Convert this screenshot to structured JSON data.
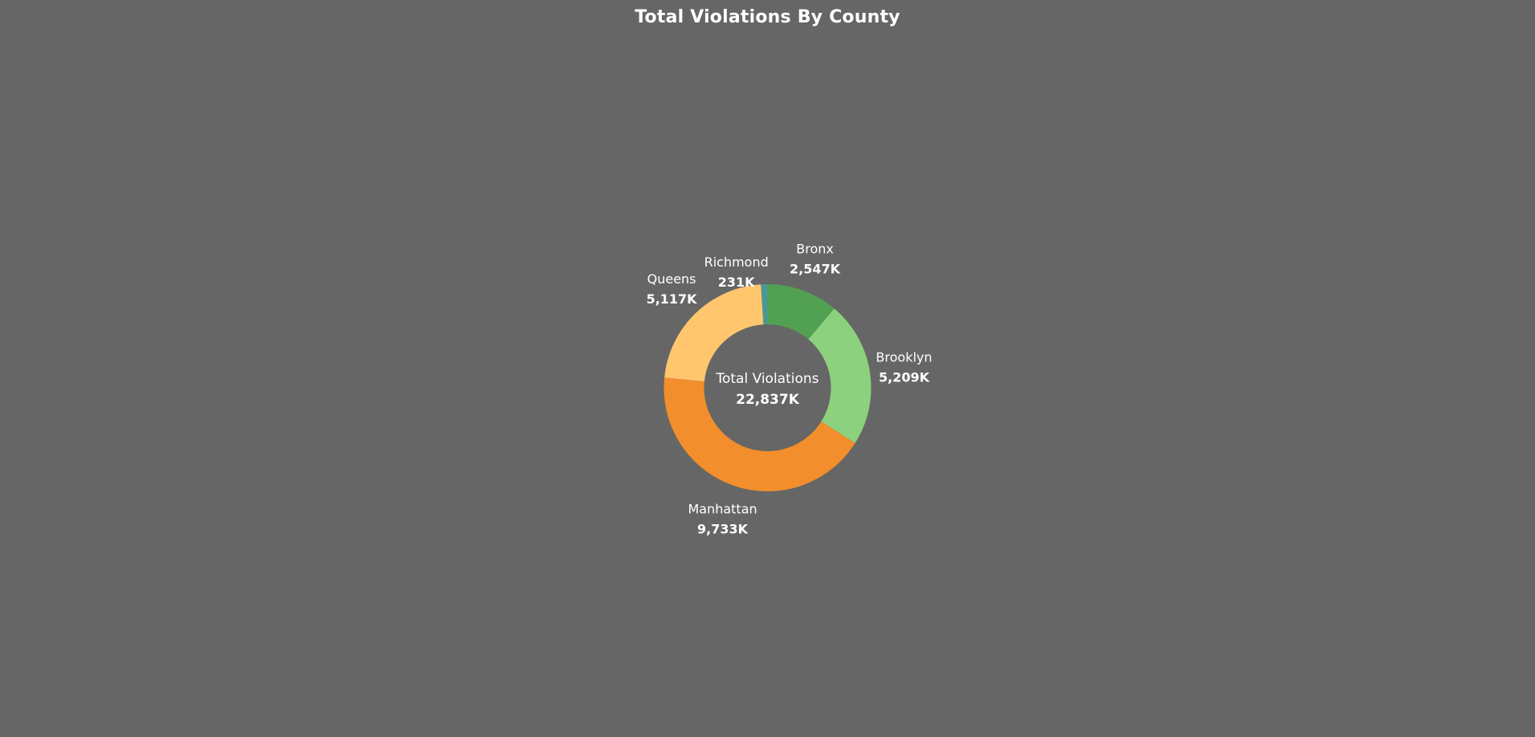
{
  "chart_data": {
    "type": "pie",
    "title": "Total Violations By County",
    "center": {
      "label": "Total Violations",
      "value_label": "22,837K",
      "value": 22837
    },
    "slices": [
      {
        "name": "Bronx",
        "value": 2547,
        "value_label": "2,547K",
        "color": "#52A152"
      },
      {
        "name": "Brooklyn",
        "value": 5209,
        "value_label": "5,209K",
        "color": "#8CD17D"
      },
      {
        "name": "Manhattan",
        "value": 9733,
        "value_label": "9,733K",
        "color": "#F28E2B"
      },
      {
        "name": "Queens",
        "value": 5117,
        "value_label": "5,117K",
        "color": "#FFC66E"
      },
      {
        "name": "Richmond",
        "value": 231,
        "value_label": "231K",
        "color": "#499894"
      }
    ],
    "legend": "none"
  }
}
